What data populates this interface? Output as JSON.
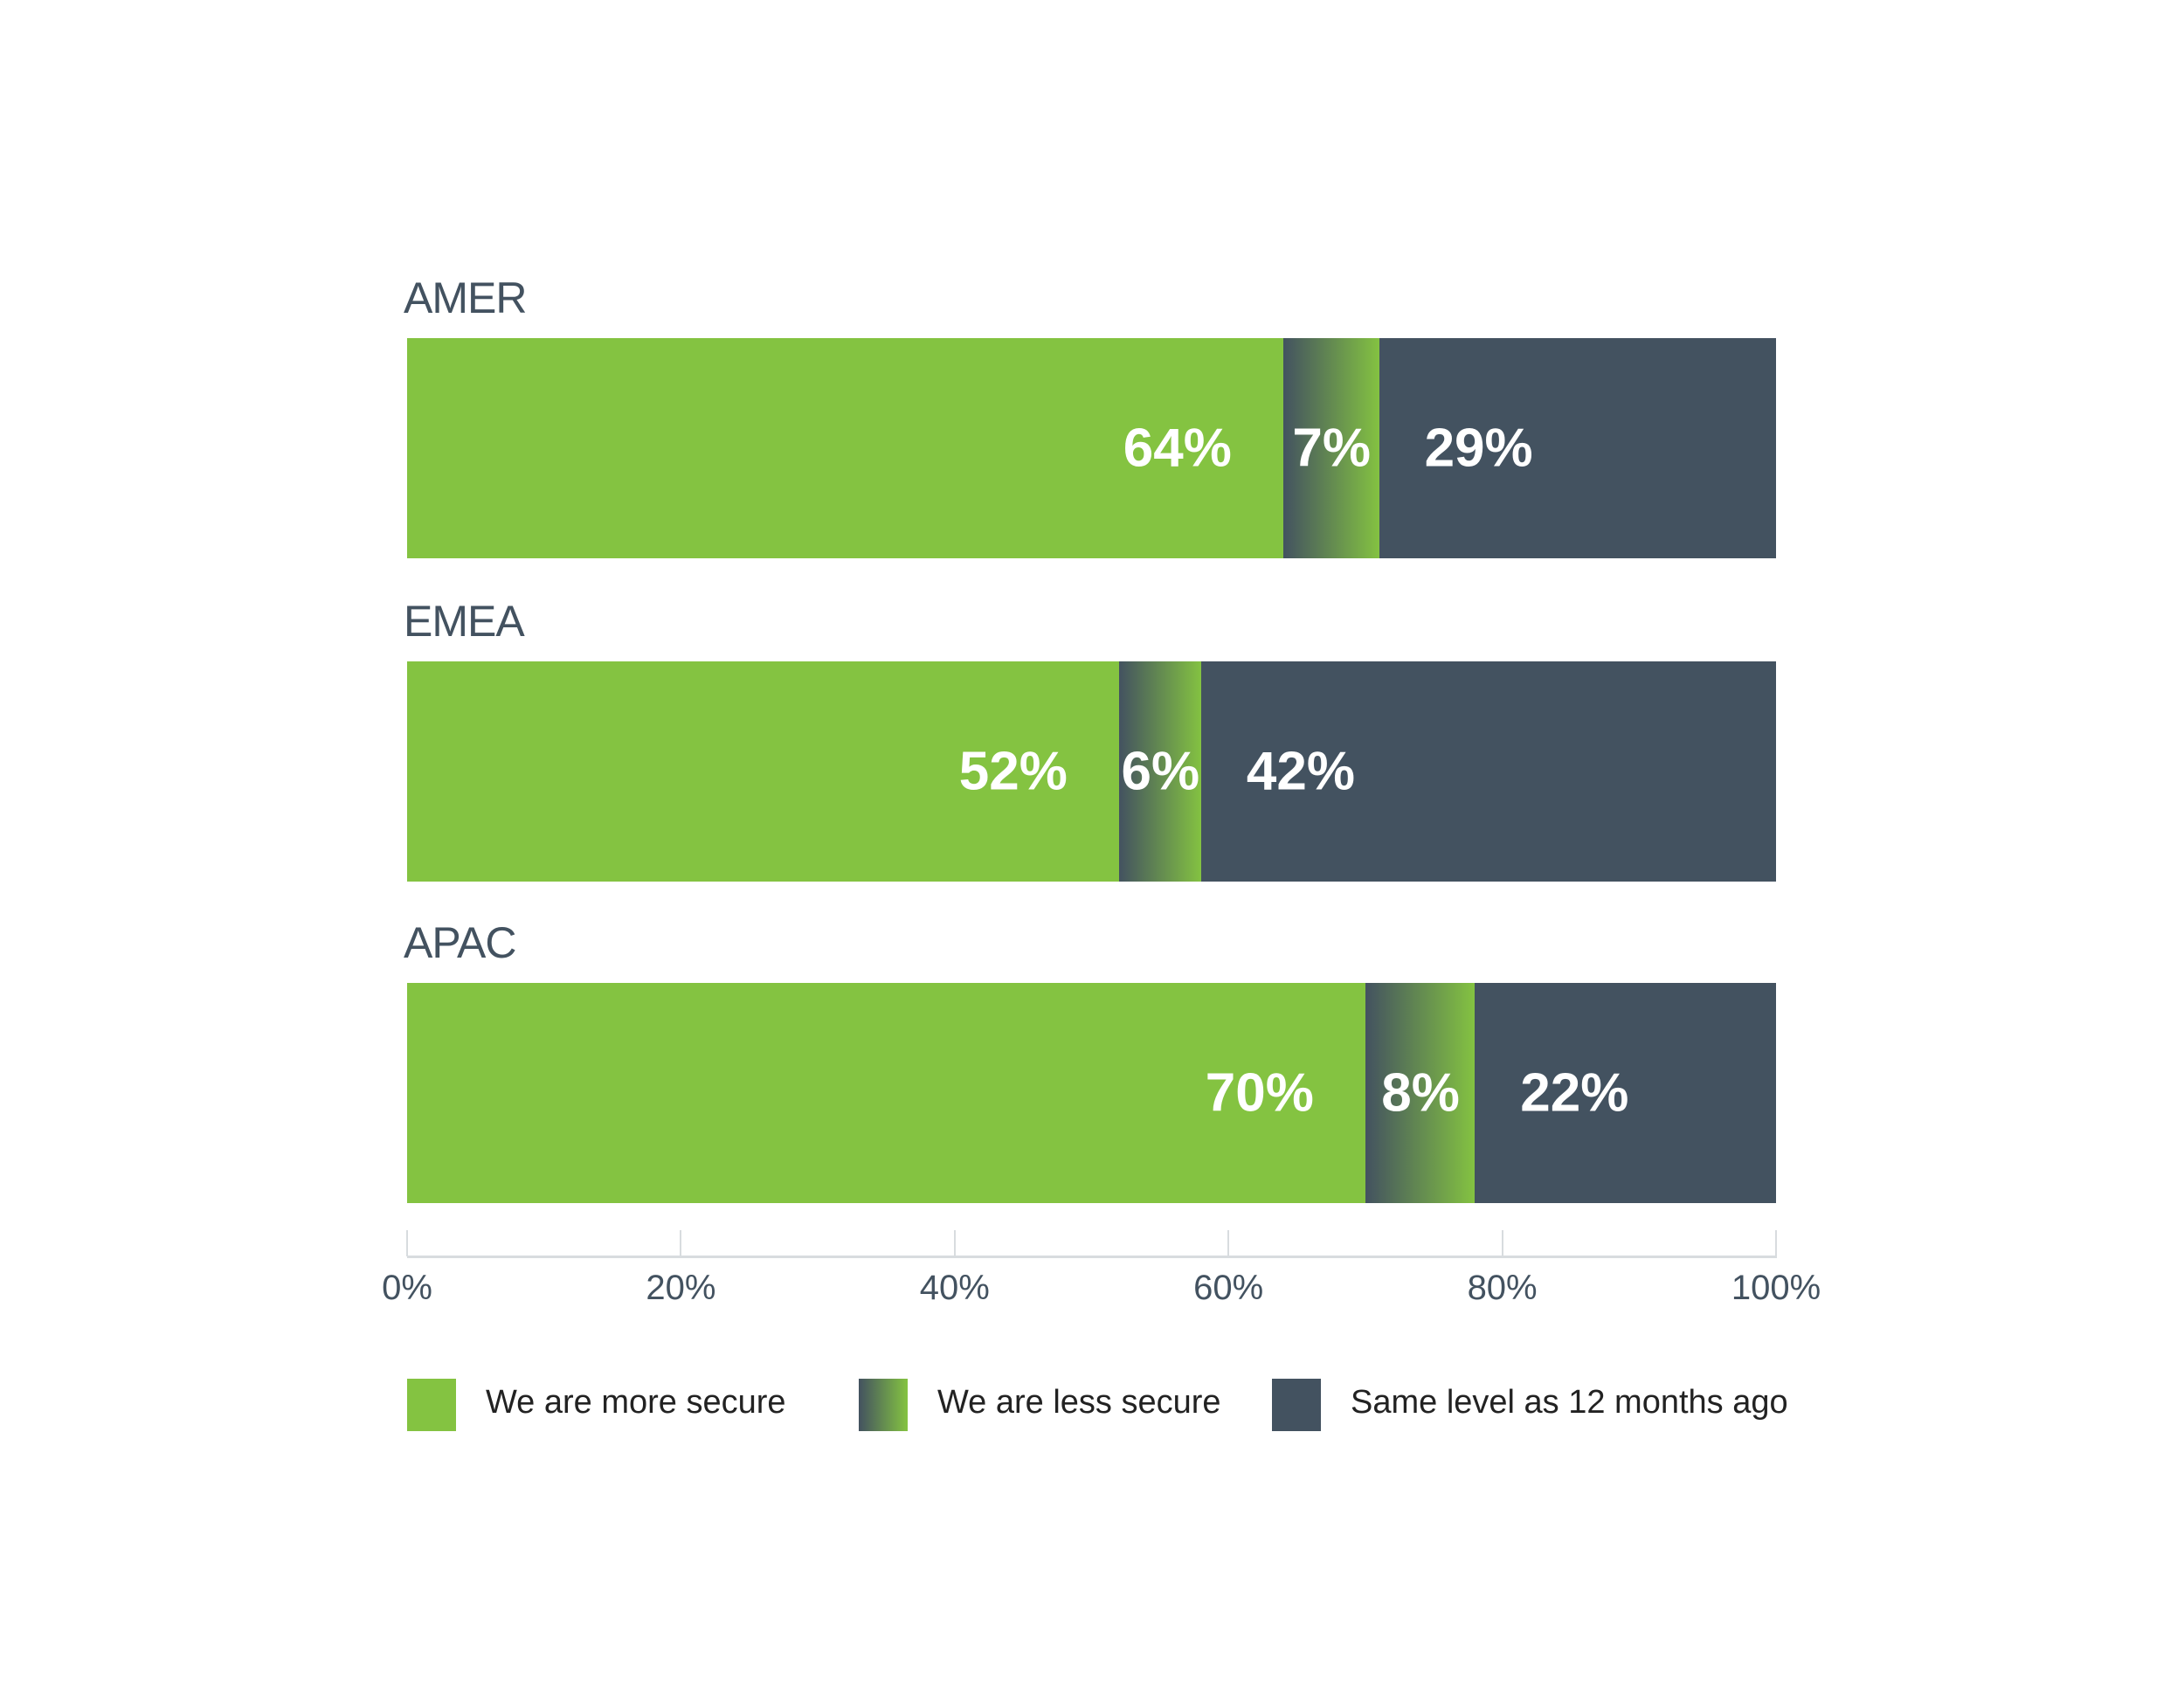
{
  "colors": {
    "more_secure": "#84c341",
    "less_secure_from": "#435260",
    "less_secure_to": "#84c341",
    "same_level": "#435260"
  },
  "chart_data": {
    "type": "bar",
    "orientation": "horizontal",
    "stacked": true,
    "categories": [
      "AMER",
      "EMEA",
      "APAC"
    ],
    "series": [
      {
        "name": "We are more secure",
        "values": [
          64,
          52,
          70
        ],
        "labels": [
          "64%",
          "52%",
          "70%"
        ]
      },
      {
        "name": "We are less secure",
        "values": [
          7,
          6,
          8
        ],
        "labels": [
          "7%",
          "6%",
          "8%"
        ]
      },
      {
        "name": "Same level as 12 months ago",
        "values": [
          29,
          42,
          22
        ],
        "labels": [
          "29%",
          "42%",
          "22%"
        ]
      }
    ],
    "xlim": [
      0,
      100
    ],
    "xticks": [
      0,
      20,
      40,
      60,
      80,
      100
    ],
    "xtick_labels": [
      "0%",
      "20%",
      "40%",
      "60%",
      "80%",
      "100%"
    ],
    "legend_position": "bottom",
    "grid": false
  }
}
